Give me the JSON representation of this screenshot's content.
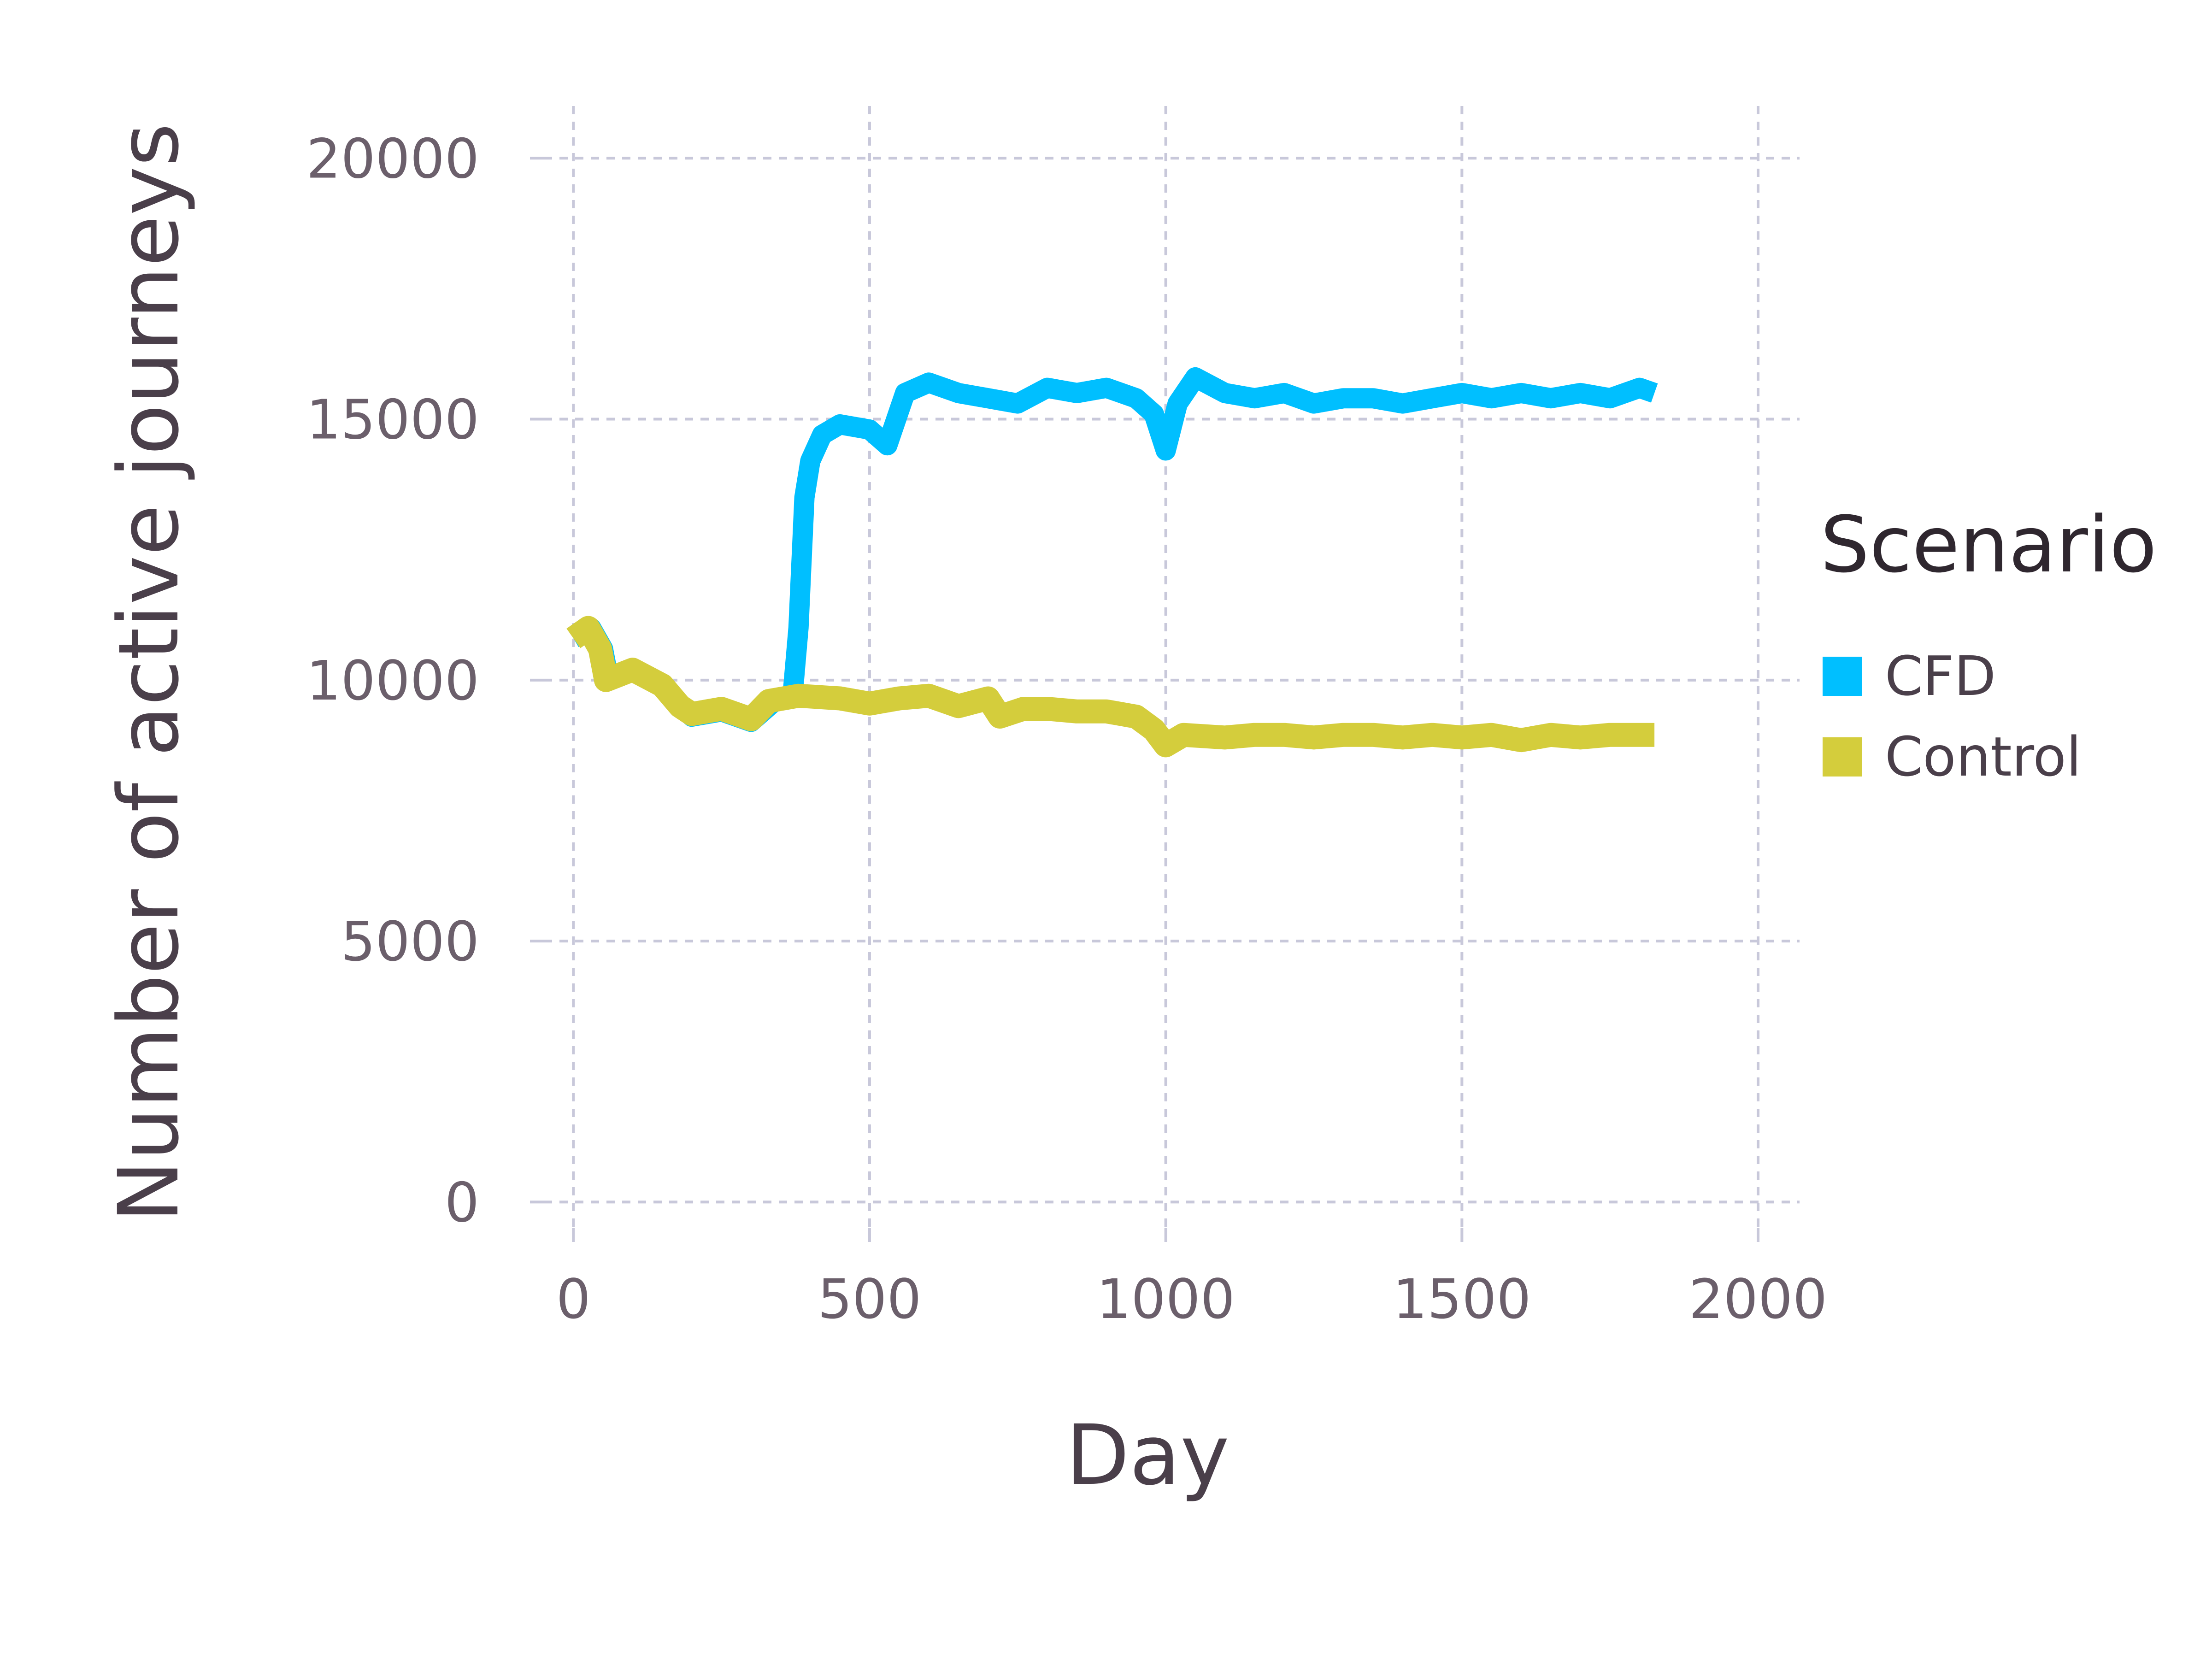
{
  "chart_data": {
    "type": "line",
    "xlabel": "Day",
    "ylabel": "Number of active journeys",
    "xlim": [
      -50,
      2070
    ],
    "ylim": [
      -500,
      21000
    ],
    "xticks": [
      0,
      500,
      1000,
      1500,
      2000
    ],
    "yticks": [
      0,
      5000,
      10000,
      15000,
      20000
    ],
    "grid": true,
    "legend": {
      "title": "Scenario",
      "placement": "right"
    },
    "series": [
      {
        "name": "CFD",
        "color": "#00bfff",
        "points": [
          [
            0,
            10800
          ],
          [
            30,
            11000
          ],
          [
            50,
            10600
          ],
          [
            60,
            10000
          ],
          [
            100,
            10200
          ],
          [
            150,
            9900
          ],
          [
            180,
            9500
          ],
          [
            200,
            9300
          ],
          [
            250,
            9400
          ],
          [
            300,
            9200
          ],
          [
            340,
            9600
          ],
          [
            370,
            9700
          ],
          [
            380,
            11000
          ],
          [
            390,
            13500
          ],
          [
            400,
            14200
          ],
          [
            420,
            14700
          ],
          [
            450,
            14900
          ],
          [
            500,
            14800
          ],
          [
            530,
            14500
          ],
          [
            560,
            15500
          ],
          [
            600,
            15700
          ],
          [
            650,
            15500
          ],
          [
            700,
            15400
          ],
          [
            750,
            15300
          ],
          [
            800,
            15600
          ],
          [
            850,
            15500
          ],
          [
            900,
            15600
          ],
          [
            950,
            15400
          ],
          [
            980,
            15100
          ],
          [
            1000,
            14400
          ],
          [
            1020,
            15300
          ],
          [
            1050,
            15800
          ],
          [
            1100,
            15500
          ],
          [
            1150,
            15400
          ],
          [
            1200,
            15500
          ],
          [
            1250,
            15300
          ],
          [
            1300,
            15400
          ],
          [
            1350,
            15400
          ],
          [
            1400,
            15300
          ],
          [
            1450,
            15400
          ],
          [
            1500,
            15500
          ],
          [
            1550,
            15400
          ],
          [
            1600,
            15500
          ],
          [
            1650,
            15400
          ],
          [
            1700,
            15500
          ],
          [
            1750,
            15400
          ],
          [
            1800,
            15600
          ],
          [
            1825,
            15500
          ]
        ]
      },
      {
        "name": "Control",
        "color": "#d4cd3c",
        "points": [
          [
            0,
            10800
          ],
          [
            25,
            11000
          ],
          [
            45,
            10600
          ],
          [
            55,
            10000
          ],
          [
            100,
            10200
          ],
          [
            150,
            9900
          ],
          [
            180,
            9500
          ],
          [
            200,
            9350
          ],
          [
            250,
            9450
          ],
          [
            300,
            9250
          ],
          [
            330,
            9600
          ],
          [
            380,
            9700
          ],
          [
            450,
            9650
          ],
          [
            500,
            9550
          ],
          [
            550,
            9650
          ],
          [
            600,
            9700
          ],
          [
            650,
            9500
          ],
          [
            700,
            9650
          ],
          [
            720,
            9300
          ],
          [
            760,
            9450
          ],
          [
            800,
            9450
          ],
          [
            850,
            9400
          ],
          [
            900,
            9400
          ],
          [
            950,
            9300
          ],
          [
            980,
            9050
          ],
          [
            1000,
            8750
          ],
          [
            1030,
            8950
          ],
          [
            1100,
            8900
          ],
          [
            1150,
            8950
          ],
          [
            1200,
            8950
          ],
          [
            1250,
            8900
          ],
          [
            1300,
            8950
          ],
          [
            1350,
            8950
          ],
          [
            1400,
            8900
          ],
          [
            1450,
            8950
          ],
          [
            1500,
            8900
          ],
          [
            1550,
            8950
          ],
          [
            1600,
            8850
          ],
          [
            1650,
            8950
          ],
          [
            1700,
            8900
          ],
          [
            1750,
            8950
          ],
          [
            1800,
            8950
          ],
          [
            1825,
            8950
          ]
        ]
      }
    ]
  }
}
